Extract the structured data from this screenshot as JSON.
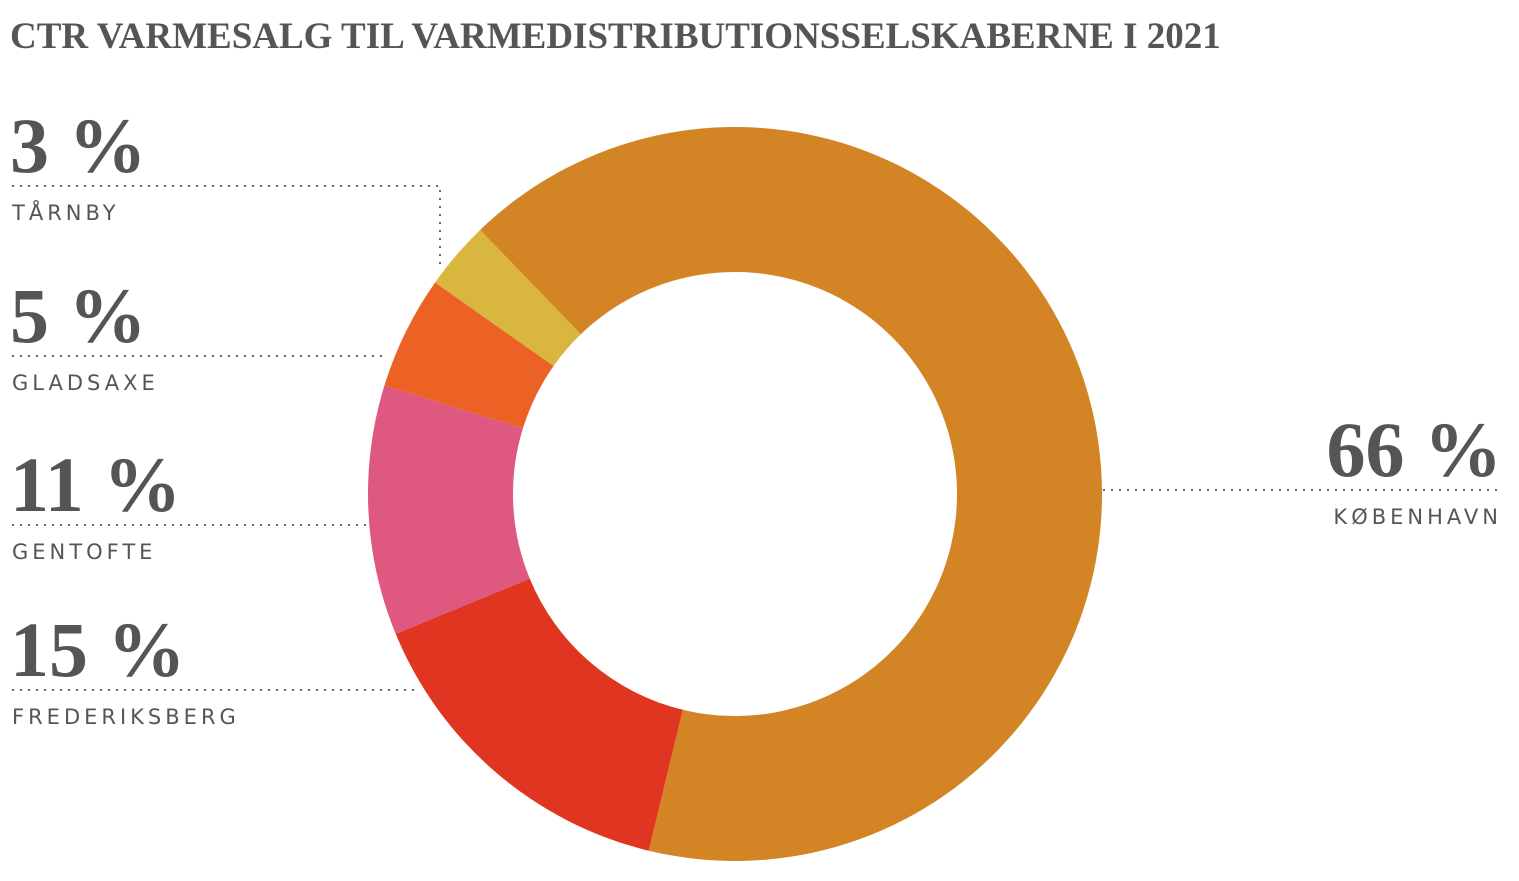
{
  "chart_data": {
    "type": "donut",
    "title": "CTR VARMESALG TIL VARMEDISTRIBUTIONSSELSKABERNE I 2021",
    "categories": [
      "KØBENHAVN",
      "FREDERIKSBERG",
      "GENTOFTE",
      "GLADSAXE",
      "TÅRNBY"
    ],
    "values": [
      66,
      15,
      11,
      5,
      3
    ],
    "value_labels": [
      "66 %",
      "15 %",
      "11 %",
      "5 %",
      "3 %"
    ],
    "colors": [
      "#d38526",
      "#e03520",
      "#de5880",
      "#ec6225",
      "#d9b63d"
    ]
  }
}
